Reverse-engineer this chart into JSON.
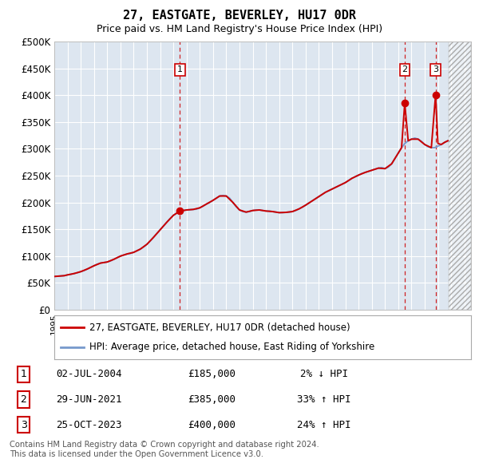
{
  "title": "27, EASTGATE, BEVERLEY, HU17 0DR",
  "subtitle": "Price paid vs. HM Land Registry's House Price Index (HPI)",
  "ylim": [
    0,
    500000
  ],
  "yticks": [
    0,
    50000,
    100000,
    150000,
    200000,
    250000,
    300000,
    350000,
    400000,
    450000,
    500000
  ],
  "ytick_labels": [
    "£0",
    "£50K",
    "£100K",
    "£150K",
    "£200K",
    "£250K",
    "£300K",
    "£350K",
    "£400K",
    "£450K",
    "£500K"
  ],
  "xlim_start": 1995.0,
  "xlim_end": 2026.5,
  "hpi_color": "#7799cc",
  "price_color": "#cc0000",
  "background_color": "#dde6f0",
  "grid_color": "#ffffff",
  "hatch_start": 2024.83,
  "sales": [
    {
      "label": 1,
      "date": 2004.5,
      "price": 185000
    },
    {
      "label": 2,
      "date": 2021.49,
      "price": 385000
    },
    {
      "label": 3,
      "date": 2023.82,
      "price": 400000
    }
  ],
  "sale_table": [
    {
      "num": 1,
      "date": "02-JUL-2004",
      "price": "£185,000",
      "change": "2% ↓ HPI"
    },
    {
      "num": 2,
      "date": "29-JUN-2021",
      "price": "£385,000",
      "change": "33% ↑ HPI"
    },
    {
      "num": 3,
      "date": "25-OCT-2023",
      "price": "£400,000",
      "change": "24% ↑ HPI"
    }
  ],
  "legend_label_red": "27, EASTGATE, BEVERLEY, HU17 0DR (detached house)",
  "legend_label_blue": "HPI: Average price, detached house, East Riding of Yorkshire",
  "footer": "Contains HM Land Registry data © Crown copyright and database right 2024.\nThis data is licensed under the Open Government Licence v3.0.",
  "hpi_data_x": [
    1995.0,
    1995.25,
    1995.5,
    1995.75,
    1996.0,
    1996.25,
    1996.5,
    1996.75,
    1997.0,
    1997.25,
    1997.5,
    1997.75,
    1998.0,
    1998.25,
    1998.5,
    1998.75,
    1999.0,
    1999.25,
    1999.5,
    1999.75,
    2000.0,
    2000.25,
    2000.5,
    2000.75,
    2001.0,
    2001.25,
    2001.5,
    2001.75,
    2002.0,
    2002.25,
    2002.5,
    2002.75,
    2003.0,
    2003.25,
    2003.5,
    2003.75,
    2004.0,
    2004.25,
    2004.5,
    2004.75,
    2005.0,
    2005.25,
    2005.5,
    2005.75,
    2006.0,
    2006.25,
    2006.5,
    2006.75,
    2007.0,
    2007.25,
    2007.5,
    2007.75,
    2008.0,
    2008.25,
    2008.5,
    2008.75,
    2009.0,
    2009.25,
    2009.5,
    2009.75,
    2010.0,
    2010.25,
    2010.5,
    2010.75,
    2011.0,
    2011.25,
    2011.5,
    2011.75,
    2012.0,
    2012.25,
    2012.5,
    2012.75,
    2013.0,
    2013.25,
    2013.5,
    2013.75,
    2014.0,
    2014.25,
    2014.5,
    2014.75,
    2015.0,
    2015.25,
    2015.5,
    2015.75,
    2016.0,
    2016.25,
    2016.5,
    2016.75,
    2017.0,
    2017.25,
    2017.5,
    2017.75,
    2018.0,
    2018.25,
    2018.5,
    2018.75,
    2019.0,
    2019.25,
    2019.5,
    2019.75,
    2020.0,
    2020.25,
    2020.5,
    2020.75,
    2021.0,
    2021.25,
    2021.5,
    2021.75,
    2022.0,
    2022.25,
    2022.5,
    2022.75,
    2023.0,
    2023.25,
    2023.5,
    2023.75,
    2024.0,
    2024.25,
    2024.5,
    2024.75
  ],
  "hpi_data_y": [
    62000,
    62500,
    63000,
    63500,
    65000,
    66000,
    67500,
    69000,
    71000,
    73000,
    76000,
    79000,
    82000,
    85000,
    87000,
    88000,
    89000,
    91000,
    94000,
    97000,
    100000,
    102000,
    104000,
    105000,
    107000,
    110000,
    113000,
    117000,
    122000,
    128000,
    135000,
    142000,
    149000,
    156000,
    163000,
    170000,
    176000,
    180000,
    183000,
    185000,
    186000,
    186500,
    187000,
    187500,
    190000,
    193000,
    197000,
    200000,
    204000,
    208000,
    212000,
    213000,
    212000,
    208000,
    200000,
    192000,
    186000,
    183000,
    182000,
    183000,
    185000,
    186000,
    186000,
    185000,
    184000,
    184000,
    183000,
    182000,
    181000,
    181000,
    181500,
    182000,
    183000,
    185000,
    188000,
    191000,
    195000,
    199000,
    203000,
    207000,
    211000,
    215000,
    219000,
    222000,
    225000,
    228000,
    231000,
    234000,
    237000,
    241000,
    245000,
    248000,
    251000,
    254000,
    256000,
    258000,
    260000,
    262000,
    264000,
    265000,
    263000,
    266000,
    272000,
    282000,
    292000,
    302000,
    310000,
    315000,
    318000,
    320000,
    318000,
    314000,
    308000,
    304000,
    302000,
    302000,
    305000,
    308000,
    312000,
    315000
  ],
  "price_line_x": [
    1995.0,
    1995.25,
    1995.5,
    1995.75,
    1996.0,
    1996.5,
    1997.0,
    1997.5,
    1998.0,
    1998.5,
    1999.0,
    1999.5,
    2000.0,
    2000.5,
    2001.0,
    2001.5,
    2002.0,
    2002.5,
    2003.0,
    2003.5,
    2004.0,
    2004.25,
    2004.5,
    2004.75,
    2005.0,
    2005.5,
    2006.0,
    2006.5,
    2007.0,
    2007.5,
    2008.0,
    2008.5,
    2009.0,
    2009.5,
    2010.0,
    2010.5,
    2011.0,
    2011.5,
    2012.0,
    2012.5,
    2013.0,
    2013.5,
    2014.0,
    2014.5,
    2015.0,
    2015.5,
    2016.0,
    2016.5,
    2017.0,
    2017.5,
    2018.0,
    2018.5,
    2019.0,
    2019.5,
    2020.0,
    2020.5,
    2021.0,
    2021.25,
    2021.49,
    2021.75,
    2022.0,
    2022.5,
    2023.0,
    2023.5,
    2023.82,
    2024.0,
    2024.25,
    2024.5,
    2024.75
  ],
  "price_line_y": [
    62000,
    62500,
    63000,
    63500,
    65000,
    67500,
    71000,
    76000,
    82000,
    87000,
    89000,
    94000,
    100000,
    104000,
    107000,
    113000,
    122000,
    135000,
    149000,
    163000,
    176000,
    180000,
    185000,
    185000,
    186000,
    187000,
    190000,
    197000,
    204000,
    212000,
    212000,
    200000,
    186000,
    182000,
    185000,
    186000,
    184000,
    183000,
    181000,
    181500,
    183000,
    188000,
    195000,
    203000,
    211000,
    219000,
    225000,
    231000,
    237000,
    245000,
    251000,
    256000,
    260000,
    264000,
    263000,
    272000,
    292000,
    302000,
    385000,
    315000,
    318000,
    318000,
    308000,
    302000,
    400000,
    310000,
    308000,
    312000,
    315000
  ]
}
